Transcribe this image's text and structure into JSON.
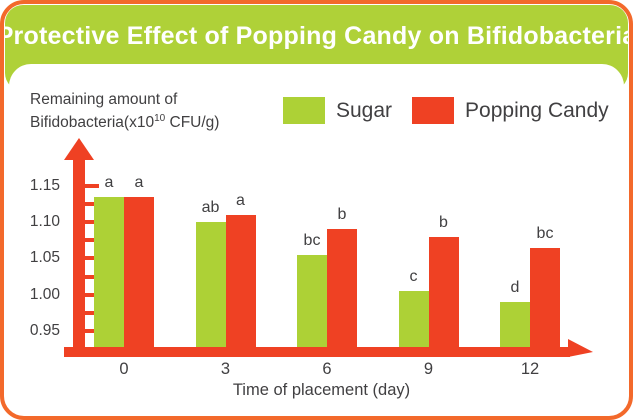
{
  "header": {
    "title": "Protective Effect of Popping Candy on Bifidobacteria"
  },
  "ylabel_parts": {
    "line1": "Remaining amount of",
    "line2_pre": "Bifidobacteria(x10",
    "superscript": "10",
    "line2_post": " CFU/g)"
  },
  "colors": {
    "frame_orange": "#F3692B",
    "banner_green": "#AFD138",
    "bar_green": "#ADD136",
    "bar_red": "#EF4123",
    "axis_red": "#EF4123",
    "text_dark": "#414042",
    "title_text": "#FFFFFF"
  },
  "chart_data": {
    "type": "bar",
    "title": "Protective Effect of Popping Candy on Bifidobacteria",
    "categories": [
      "0",
      "3",
      "6",
      "9",
      "12"
    ],
    "series": [
      {
        "name": "Sugar",
        "color": "#ADD136",
        "values": [
          1.135,
          1.1,
          1.055,
          1.005,
          0.99
        ],
        "sig_letters": [
          "a",
          "ab",
          "bc",
          "c",
          "d"
        ]
      },
      {
        "name": "Popping Candy",
        "color": "#EF4123",
        "values": [
          1.135,
          1.11,
          1.09,
          1.08,
          1.065
        ],
        "sig_letters": [
          "a",
          "a",
          "b",
          "b",
          "bc"
        ]
      }
    ],
    "xlabel": "Time of placement (day)",
    "ylabel": "Remaining amount of Bifidobacteria(x10^10 CFU/g)",
    "yticks": [
      "0.95",
      "1.00",
      "1.05",
      "1.10",
      "1.15"
    ],
    "minor_tick_step": 0.025,
    "ylim_visible": [
      0.93,
      1.17
    ],
    "grid": false,
    "legend_position": "top",
    "annotation_style": "significance letters above bars"
  }
}
